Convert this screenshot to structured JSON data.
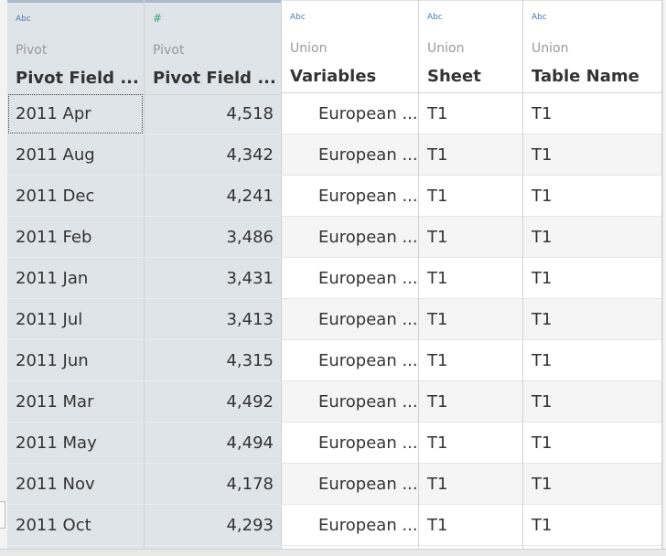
{
  "columns": [
    {
      "type_icon": "Abc",
      "origin": "Pivot",
      "name": "Pivot Field ...",
      "kind": "pivot",
      "align": "left"
    },
    {
      "type_icon": "#",
      "origin": "Pivot",
      "name": "Pivot Field ...",
      "kind": "pivot",
      "align": "right"
    },
    {
      "type_icon": "Abc",
      "origin": "Union",
      "name": "Variables",
      "kind": "union",
      "align": "var"
    },
    {
      "type_icon": "Abc",
      "origin": "Union",
      "name": "Sheet",
      "kind": "union",
      "align": "left"
    },
    {
      "type_icon": "Abc",
      "origin": "Union",
      "name": "Table Name",
      "kind": "union",
      "align": "left"
    }
  ],
  "rows": [
    [
      "2011 Apr",
      "4,518",
      "European ...",
      "T1",
      "T1"
    ],
    [
      "2011 Aug",
      "4,342",
      "European ...",
      "T1",
      "T1"
    ],
    [
      "2011 Dec",
      "4,241",
      "European ...",
      "T1",
      "T1"
    ],
    [
      "2011 Feb",
      "3,486",
      "European ...",
      "T1",
      "T1"
    ],
    [
      "2011 Jan",
      "3,431",
      "European ...",
      "T1",
      "T1"
    ],
    [
      "2011 Jul",
      "3,413",
      "European ...",
      "T1",
      "T1"
    ],
    [
      "2011 Jun",
      "4,315",
      "European ...",
      "T1",
      "T1"
    ],
    [
      "2011 Mar",
      "4,492",
      "European ...",
      "T1",
      "T1"
    ],
    [
      "2011 May",
      "4,494",
      "European ...",
      "T1",
      "T1"
    ],
    [
      "2011 Nov",
      "4,178",
      "European ...",
      "T1",
      "T1"
    ],
    [
      "2011 Oct",
      "4,293",
      "European ...",
      "T1",
      "T1"
    ]
  ]
}
